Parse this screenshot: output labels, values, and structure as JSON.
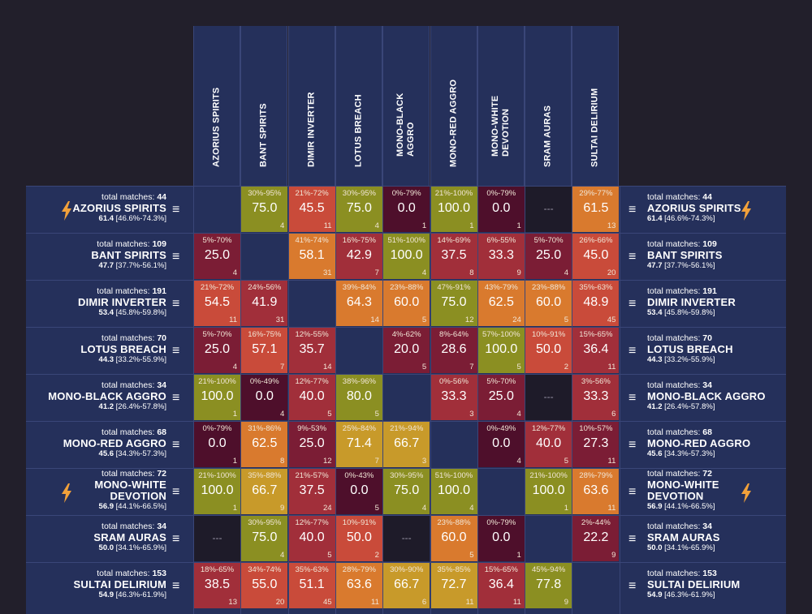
{
  "colors": {
    "background": "#221f2b",
    "panel": "#25305b",
    "gridline": "#3a4678",
    "bolt": "#f2a13a",
    "no_data": "#1e1b29",
    "scale": [
      "#4e0f2b",
      "#7b1d35",
      "#a12f3a",
      "#c94b3a",
      "#d97a2e",
      "#c89a2a",
      "#8b8f22"
    ]
  },
  "chart_data": {
    "type": "heatmap",
    "columns": [
      "AZORIUS SPIRITS",
      "BANT SPIRITS",
      "DIMIR INVERTER",
      "LOTUS BREACH",
      "MONO-BLACK\nAGGRO",
      "MONO-RED AGGRO",
      "MONO-WHITE\nDEVOTION",
      "SRAM AURAS",
      "SULTAI DELIRIUM"
    ],
    "total_matches_label": "total matches:",
    "no_data_symbol": "---",
    "rows": [
      {
        "name": "AZORIUS SPIRITS",
        "total_matches": "44",
        "score": "61.4",
        "interval": "[46.6%-74.3%]",
        "bolt": true,
        "cells": [
          null,
          {
            "r": "30%-95%",
            "v": "75.0",
            "n": "4"
          },
          {
            "r": "21%-72%",
            "v": "45.5",
            "n": "11"
          },
          {
            "r": "30%-95%",
            "v": "75.0",
            "n": "4"
          },
          {
            "r": "0%-79%",
            "v": "0.0",
            "n": "1"
          },
          {
            "r": "21%-100%",
            "v": "100.0",
            "n": "1"
          },
          {
            "r": "0%-79%",
            "v": "0.0",
            "n": "1"
          },
          "---",
          {
            "r": "29%-77%",
            "v": "61.5",
            "n": "13"
          }
        ]
      },
      {
        "name": "BANT SPIRITS",
        "total_matches": "109",
        "score": "47.7",
        "interval": "[37.7%-56.1%]",
        "bolt": false,
        "cells": [
          {
            "r": "5%-70%",
            "v": "25.0",
            "n": "4"
          },
          null,
          {
            "r": "41%-74%",
            "v": "58.1",
            "n": "31"
          },
          {
            "r": "16%-75%",
            "v": "42.9",
            "n": "7"
          },
          {
            "r": "51%-100%",
            "v": "100.0",
            "n": "4"
          },
          {
            "r": "14%-69%",
            "v": "37.5",
            "n": "8"
          },
          {
            "r": "6%-55%",
            "v": "33.3",
            "n": "9"
          },
          {
            "r": "5%-70%",
            "v": "25.0",
            "n": "4"
          },
          {
            "r": "26%-66%",
            "v": "45.0",
            "n": "20"
          }
        ]
      },
      {
        "name": "DIMIR INVERTER",
        "total_matches": "191",
        "score": "53.4",
        "interval": "[45.8%-59.8%]",
        "bolt": false,
        "cells": [
          {
            "r": "21%-72%",
            "v": "54.5",
            "n": "11"
          },
          {
            "r": "24%-56%",
            "v": "41.9",
            "n": "31"
          },
          null,
          {
            "r": "39%-84%",
            "v": "64.3",
            "n": "14"
          },
          {
            "r": "23%-88%",
            "v": "60.0",
            "n": "5"
          },
          {
            "r": "47%-91%",
            "v": "75.0",
            "n": "12"
          },
          {
            "r": "43%-79%",
            "v": "62.5",
            "n": "24"
          },
          {
            "r": "23%-88%",
            "v": "60.0",
            "n": "5"
          },
          {
            "r": "35%-63%",
            "v": "48.9",
            "n": "45"
          }
        ]
      },
      {
        "name": "LOTUS BREACH",
        "total_matches": "70",
        "score": "44.3",
        "interval": "[33.2%-55.9%]",
        "bolt": false,
        "cells": [
          {
            "r": "5%-70%",
            "v": "25.0",
            "n": "4"
          },
          {
            "r": "16%-75%",
            "v": "57.1",
            "n": "7"
          },
          {
            "r": "12%-55%",
            "v": "35.7",
            "n": "14"
          },
          null,
          {
            "r": "4%-62%",
            "v": "20.0",
            "n": "5"
          },
          {
            "r": "8%-64%",
            "v": "28.6",
            "n": "7"
          },
          {
            "r": "57%-100%",
            "v": "100.0",
            "n": "5"
          },
          {
            "r": "10%-91%",
            "v": "50.0",
            "n": "2"
          },
          {
            "r": "15%-65%",
            "v": "36.4",
            "n": "11"
          }
        ]
      },
      {
        "name": "MONO-BLACK AGGRO",
        "total_matches": "34",
        "score": "41.2",
        "interval": "[26.4%-57.8%]",
        "bolt": false,
        "cells": [
          {
            "r": "21%-100%",
            "v": "100.0",
            "n": "1"
          },
          {
            "r": "0%-49%",
            "v": "0.0",
            "n": "4"
          },
          {
            "r": "12%-77%",
            "v": "40.0",
            "n": "5"
          },
          {
            "r": "38%-96%",
            "v": "80.0",
            "n": "5"
          },
          null,
          {
            "r": "0%-56%",
            "v": "33.3",
            "n": "3"
          },
          {
            "r": "5%-70%",
            "v": "25.0",
            "n": "4"
          },
          "---",
          {
            "r": "3%-56%",
            "v": "33.3",
            "n": "6"
          }
        ]
      },
      {
        "name": "MONO-RED AGGRO",
        "total_matches": "68",
        "score": "45.6",
        "interval": "[34.3%-57.3%]",
        "bolt": false,
        "cells": [
          {
            "r": "0%-79%",
            "v": "0.0",
            "n": "1"
          },
          {
            "r": "31%-86%",
            "v": "62.5",
            "n": "8"
          },
          {
            "r": "9%-53%",
            "v": "25.0",
            "n": "12"
          },
          {
            "r": "25%-84%",
            "v": "71.4",
            "n": "7"
          },
          {
            "r": "21%-94%",
            "v": "66.7",
            "n": "3"
          },
          null,
          {
            "r": "0%-49%",
            "v": "0.0",
            "n": "4"
          },
          {
            "r": "12%-77%",
            "v": "40.0",
            "n": "5"
          },
          {
            "r": "10%-57%",
            "v": "27.3",
            "n": "11"
          }
        ]
      },
      {
        "name": "MONO-WHITE\nDEVOTION",
        "total_matches": "72",
        "score": "56.9",
        "interval": "[44.1%-66.5%]",
        "bolt": true,
        "cells": [
          {
            "r": "21%-100%",
            "v": "100.0",
            "n": "1"
          },
          {
            "r": "35%-88%",
            "v": "66.7",
            "n": "9"
          },
          {
            "r": "21%-57%",
            "v": "37.5",
            "n": "24"
          },
          {
            "r": "0%-43%",
            "v": "0.0",
            "n": "5"
          },
          {
            "r": "30%-95%",
            "v": "75.0",
            "n": "4"
          },
          {
            "r": "51%-100%",
            "v": "100.0",
            "n": "4"
          },
          null,
          {
            "r": "21%-100%",
            "v": "100.0",
            "n": "1"
          },
          {
            "r": "28%-79%",
            "v": "63.6",
            "n": "11"
          }
        ]
      },
      {
        "name": "SRAM AURAS",
        "total_matches": "34",
        "score": "50.0",
        "interval": "[34.1%-65.9%]",
        "bolt": false,
        "cells": [
          "---",
          {
            "r": "30%-95%",
            "v": "75.0",
            "n": "4"
          },
          {
            "r": "12%-77%",
            "v": "40.0",
            "n": "5"
          },
          {
            "r": "10%-91%",
            "v": "50.0",
            "n": "2"
          },
          "---",
          {
            "r": "23%-88%",
            "v": "60.0",
            "n": "5"
          },
          {
            "r": "0%-79%",
            "v": "0.0",
            "n": "1"
          },
          null,
          {
            "r": "2%-44%",
            "v": "22.2",
            "n": "9"
          }
        ]
      },
      {
        "name": "SULTAI DELIRIUM",
        "total_matches": "153",
        "score": "54.9",
        "interval": "[46.3%-61.9%]",
        "bolt": false,
        "cells": [
          {
            "r": "18%-65%",
            "v": "38.5",
            "n": "13"
          },
          {
            "r": "34%-74%",
            "v": "55.0",
            "n": "20"
          },
          {
            "r": "35%-63%",
            "v": "51.1",
            "n": "45"
          },
          {
            "r": "28%-79%",
            "v": "63.6",
            "n": "11"
          },
          {
            "r": "30%-90%",
            "v": "66.7",
            "n": "6"
          },
          {
            "r": "35%-85%",
            "v": "72.7",
            "n": "11"
          },
          {
            "r": "15%-65%",
            "v": "36.4",
            "n": "11"
          },
          {
            "r": "45%-94%",
            "v": "77.8",
            "n": "9"
          },
          null
        ]
      }
    ]
  }
}
